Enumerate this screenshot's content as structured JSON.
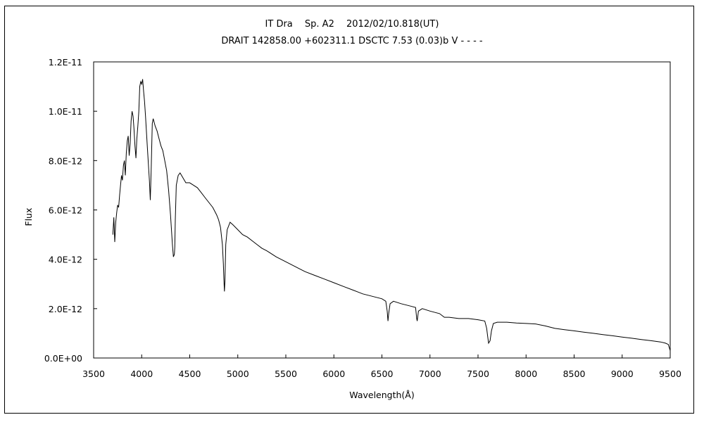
{
  "chart_data": {
    "type": "line",
    "title": "IT Dra  Sp. A2  2012/02/10.818(UT)",
    "subtitle": "DRAIT 142858.00 +602311.1 DSCTC 7.53 (0.03)b V - - - -",
    "xlabel": "Wavelength(Å)",
    "ylabel": "Flux",
    "xlim": [
      3500,
      9500
    ],
    "ylim": [
      0,
      1.2e-11
    ],
    "x_ticks": [
      "3500",
      "4000",
      "4500",
      "5000",
      "5500",
      "6000",
      "6500",
      "7000",
      "7500",
      "8000",
      "8500",
      "9000",
      "9500"
    ],
    "y_ticks": [
      "0.0E+00",
      "2.0E-12",
      "4.0E-12",
      "6.0E-12",
      "8.0E-12",
      "1.0E-11",
      "1.2E-11"
    ],
    "grid": false,
    "series": [
      {
        "x": [
          3700,
          3710,
          3720,
          3730,
          3740,
          3750,
          3760,
          3770,
          3780,
          3790,
          3800,
          3810,
          3820,
          3830,
          3840,
          3850,
          3860,
          3870,
          3880,
          3890,
          3900,
          3910,
          3920,
          3930,
          3940,
          3950,
          3960,
          3970,
          3980,
          3990,
          4000,
          4010,
          4020,
          4030,
          4040,
          4060,
          4080,
          4090,
          4100,
          4110,
          4120,
          4140,
          4160,
          4180,
          4200,
          4220,
          4240,
          4260,
          4280,
          4300,
          4320,
          4330,
          4340,
          4345,
          4350,
          4360,
          4380,
          4400,
          4430,
          4460,
          4500,
          4540,
          4580,
          4620,
          4660,
          4700,
          4740,
          4780,
          4800,
          4820,
          4840,
          4850,
          4855,
          4861,
          4866,
          4875,
          4890,
          4920,
          4950,
          5000,
          5050,
          5100,
          5150,
          5200,
          5250,
          5300,
          5400,
          5500,
          5600,
          5700,
          5800,
          5900,
          6000,
          6100,
          6200,
          6300,
          6400,
          6500,
          6540,
          6555,
          6563,
          6570,
          6585,
          6620,
          6700,
          6800,
          6850,
          6862,
          6867,
          6880,
          6920,
          7000,
          7100,
          7150,
          7200,
          7300,
          7400,
          7500,
          7570,
          7590,
          7600,
          7610,
          7625,
          7640,
          7660,
          7700,
          7800,
          7900,
          8000,
          8100,
          8200,
          8300,
          8400,
          8500,
          8600,
          8700,
          8800,
          8900,
          9000,
          9100,
          9200,
          9300,
          9400,
          9450,
          9480,
          9500
        ],
        "y": [
          5e-12,
          5.7e-12,
          4.7e-12,
          5.5e-12,
          5.9e-12,
          6.2e-12,
          6.1e-12,
          6.6e-12,
          7e-12,
          7.4e-12,
          7.2e-12,
          7.8e-12,
          8e-12,
          7.4e-12,
          8.3e-12,
          8.8e-12,
          9e-12,
          8.2e-12,
          8.7e-12,
          9.6e-12,
          1e-11,
          9.8e-12,
          9.3e-12,
          8.6e-12,
          8.1e-12,
          8.9e-12,
          9.4e-12,
          1e-11,
          1.1e-11,
          1.12e-11,
          1.11e-11,
          1.13e-11,
          1.08e-11,
          1.04e-11,
          9.8e-12,
          8.5e-12,
          7.2e-12,
          6.4e-12,
          7.8e-12,
          9.5e-12,
          9.7e-12,
          9.4e-12,
          9.2e-12,
          8.9e-12,
          8.6e-12,
          8.4e-12,
          8e-12,
          7.6e-12,
          6.8e-12,
          5.8e-12,
          4.6e-12,
          4.1e-12,
          4.2e-12,
          4.5e-12,
          5.6e-12,
          7e-12,
          7.4e-12,
          7.5e-12,
          7.3e-12,
          7.1e-12,
          7.1e-12,
          7e-12,
          6.9e-12,
          6.7e-12,
          6.5e-12,
          6.3e-12,
          6.1e-12,
          5.8e-12,
          5.6e-12,
          5.3e-12,
          4.6e-12,
          3.8e-12,
          3.2e-12,
          2.7e-12,
          3.1e-12,
          4.6e-12,
          5.2e-12,
          5.5e-12,
          5.4e-12,
          5.2e-12,
          5e-12,
          4.9e-12,
          4.75e-12,
          4.6e-12,
          4.45e-12,
          4.35e-12,
          4.1e-12,
          3.9e-12,
          3.7e-12,
          3.5e-12,
          3.35e-12,
          3.2e-12,
          3.05e-12,
          2.9e-12,
          2.75e-12,
          2.6e-12,
          2.5e-12,
          2.4e-12,
          2.3e-12,
          1.9e-12,
          1.5e-12,
          1.8e-12,
          2.2e-12,
          2.3e-12,
          2.2e-12,
          2.1e-12,
          2.05e-12,
          1.6e-12,
          1.5e-12,
          1.9e-12,
          2e-12,
          1.9e-12,
          1.8e-12,
          1.65e-12,
          1.65e-12,
          1.6e-12,
          1.6e-12,
          1.55e-12,
          1.5e-12,
          1.2e-12,
          9e-13,
          6e-13,
          7e-13,
          1.1e-12,
          1.4e-12,
          1.45e-12,
          1.45e-12,
          1.42e-12,
          1.4e-12,
          1.38e-12,
          1.3e-12,
          1.2e-12,
          1.15e-12,
          1.1e-12,
          1.05e-12,
          1e-12,
          9.5e-13,
          9e-13,
          8.5e-13,
          8e-13,
          7.5e-13,
          7e-13,
          6.5e-13,
          6e-13,
          5.5e-13,
          3e-13
        ]
      }
    ]
  }
}
